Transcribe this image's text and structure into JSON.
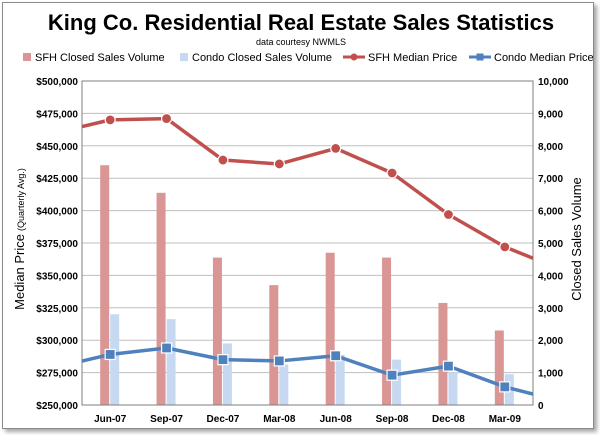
{
  "chart_data": {
    "type": "bar",
    "title": "King Co. Residential Real Estate Sales Statistics",
    "subtitle": "data courtesy NWMLS",
    "categories": [
      "Jun-07",
      "Sep-07",
      "Dec-07",
      "Mar-08",
      "Jun-08",
      "Sep-08",
      "Dec-08",
      "Mar-09"
    ],
    "left_axis": {
      "label_main": "Median Price",
      "label_suffix": "(Quarterly Avg.)",
      "range": [
        250000,
        500000
      ],
      "ticks": [
        "$250,000",
        "$275,000",
        "$300,000",
        "$325,000",
        "$350,000",
        "$375,000",
        "$400,000",
        "$425,000",
        "$450,000",
        "$475,000",
        "$500,000"
      ]
    },
    "right_axis": {
      "label": "Closed Sales Volume",
      "range": [
        0,
        10000
      ],
      "ticks": [
        "0",
        "1,000",
        "2,000",
        "3,000",
        "4,000",
        "5,000",
        "6,000",
        "7,000",
        "8,000",
        "9,000",
        "10,000"
      ]
    },
    "grid": true,
    "legend_position": "top",
    "bar_series": [
      {
        "name": "SFH Closed Sales Volume",
        "color": "#d99694",
        "values": [
          7400,
          6550,
          4550,
          3700,
          4700,
          4550,
          3150,
          2300
        ]
      },
      {
        "name": "Condo Closed Sales Volume",
        "color": "#c6d9f1",
        "values": [
          2800,
          2650,
          1900,
          1250,
          1550,
          1400,
          1000,
          950
        ]
      }
    ],
    "line_series": [
      {
        "name": "SFH Median Price",
        "color": "#c0504d",
        "marker": "circle",
        "values": [
          470000,
          471000,
          439000,
          436000,
          448000,
          429000,
          397000,
          372000
        ]
      },
      {
        "name": "Condo Median Price",
        "color": "#4f81bd",
        "marker": "square",
        "values": [
          289000,
          294000,
          285000,
          284000,
          288000,
          273000,
          280000,
          264000
        ]
      }
    ]
  }
}
